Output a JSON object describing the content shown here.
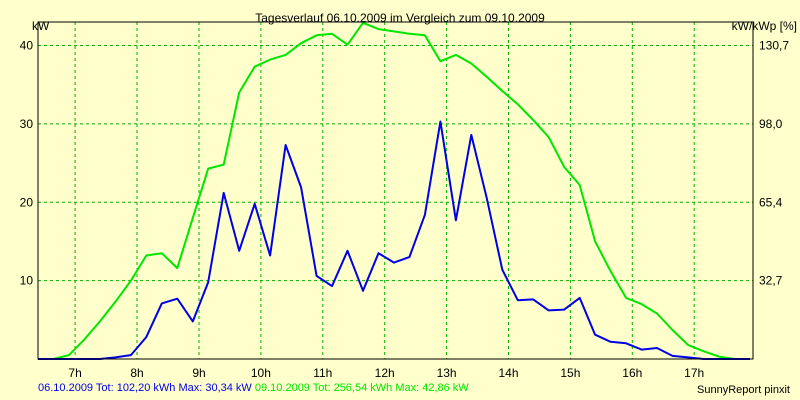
{
  "chart_data": {
    "type": "line",
    "title": "Tagesverlauf 06.10.2009 im Vergleich zum 09.10.2009",
    "ylabel_left": "kW",
    "ylabel_right": "kW/kWp [%]",
    "x_tick_labels": [
      "7h",
      "8h",
      "9h",
      "10h",
      "11h",
      "12h",
      "13h",
      "14h",
      "15h",
      "16h",
      "17h"
    ],
    "x_tick_hours": [
      7,
      8,
      9,
      10,
      11,
      12,
      13,
      14,
      15,
      16,
      17
    ],
    "xlim": [
      6.4,
      17.95
    ],
    "ylim": [
      0,
      43
    ],
    "y_ticks_left": [
      10,
      20,
      30,
      40
    ],
    "y_ticks_left_labels": [
      "10",
      "20",
      "30",
      "40"
    ],
    "y_ticks_right_labels": [
      "32,7",
      "65,4",
      "98,0",
      "130,7"
    ],
    "grid": true,
    "series": [
      {
        "name": "09.10.2009",
        "color": "#00e600",
        "x": [
          6.4,
          6.65,
          6.9,
          7.15,
          7.4,
          7.65,
          7.9,
          8.15,
          8.4,
          8.65,
          8.9,
          9.15,
          9.4,
          9.65,
          9.9,
          10.15,
          10.4,
          10.65,
          10.9,
          11.15,
          11.4,
          11.65,
          11.9,
          12.15,
          12.4,
          12.65,
          12.9,
          13.15,
          13.4,
          13.65,
          13.9,
          14.15,
          14.4,
          14.65,
          14.9,
          15.15,
          15.4,
          15.65,
          15.9,
          16.15,
          16.4,
          16.65,
          16.9,
          17.15,
          17.4,
          17.65,
          17.9
        ],
        "y": [
          0,
          0,
          0.5,
          2.5,
          4.8,
          7.3,
          10,
          13.2,
          13.5,
          11.6,
          18,
          24.3,
          24.8,
          34,
          37.3,
          38.2,
          38.8,
          40.3,
          41.3,
          41.5,
          40.1,
          42.9,
          42.1,
          41.8,
          41.5,
          41.3,
          38,
          38.8,
          37.7,
          36,
          34.2,
          32.5,
          30.5,
          28.3,
          24.5,
          22.2,
          15,
          11.2,
          7.8,
          7,
          5.8,
          3.7,
          1.8,
          1,
          0.3,
          0,
          0
        ]
      },
      {
        "name": "06.10.2009",
        "color": "#0000e6",
        "x": [
          6.4,
          6.65,
          6.9,
          7.15,
          7.4,
          7.65,
          7.9,
          8.15,
          8.4,
          8.65,
          8.9,
          9.15,
          9.4,
          9.65,
          9.9,
          10.15,
          10.4,
          10.65,
          10.9,
          11.15,
          11.4,
          11.65,
          11.9,
          12.15,
          12.4,
          12.65,
          12.9,
          13.15,
          13.4,
          13.65,
          13.9,
          14.15,
          14.4,
          14.65,
          14.9,
          15.15,
          15.4,
          15.65,
          15.9,
          16.15,
          16.4,
          16.65,
          16.9,
          17.15,
          17.4,
          17.65,
          17.9
        ],
        "y": [
          0,
          0,
          0,
          0,
          0,
          0.2,
          0.5,
          2.8,
          7.1,
          7.7,
          4.8,
          9.8,
          21.2,
          13.8,
          19.8,
          13.2,
          27.3,
          21.9,
          10.6,
          9.3,
          13.8,
          8.7,
          13.5,
          12.3,
          13,
          18.4,
          30.3,
          17.7,
          28.6,
          20.5,
          11.4,
          7.5,
          7.6,
          6.2,
          6.3,
          7.8,
          3.1,
          2.2,
          2,
          1.2,
          1.4,
          0.4,
          0.2,
          0,
          0,
          0,
          0
        ]
      }
    ]
  },
  "footer": {
    "day1_text": "06.10.2009 Tot: 102,20 kWh Max: 30,34 kW",
    "day2_text": "09.10.2009 Tot: 256,54 kWh Max: 42,86 kW",
    "day1_color": "#0000e6",
    "day2_color": "#00e600",
    "credit": "SunnyReport pinxit"
  }
}
